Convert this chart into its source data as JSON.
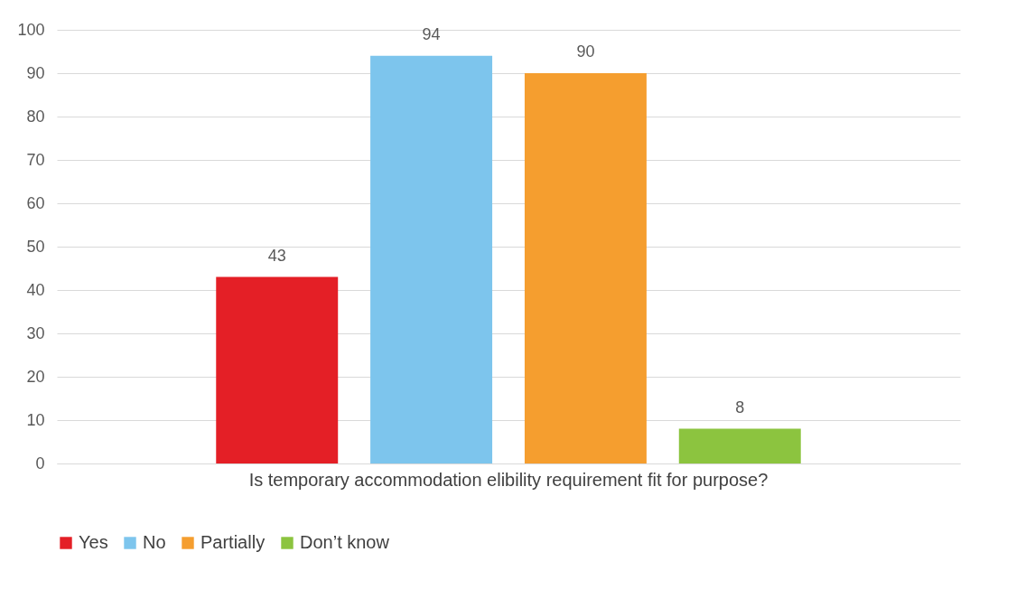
{
  "chart_data": {
    "type": "bar",
    "categories": [
      "Is temporary accommodation elibility requirement fit for purpose?"
    ],
    "series": [
      {
        "name": "Yes",
        "color": "#e41f26",
        "values": [
          43
        ]
      },
      {
        "name": "No",
        "color": "#7dc5ed",
        "values": [
          94
        ]
      },
      {
        "name": "Partially",
        "color": "#f59e2f",
        "values": [
          90
        ]
      },
      {
        "name": "Don’t know",
        "color": "#8cc43f",
        "values": [
          8
        ]
      }
    ],
    "ylim": [
      0,
      100
    ],
    "yticks": [
      0,
      10,
      20,
      30,
      40,
      50,
      60,
      70,
      80,
      90,
      100
    ],
    "grid": "y",
    "legend": "bottom",
    "data_labels": true
  }
}
